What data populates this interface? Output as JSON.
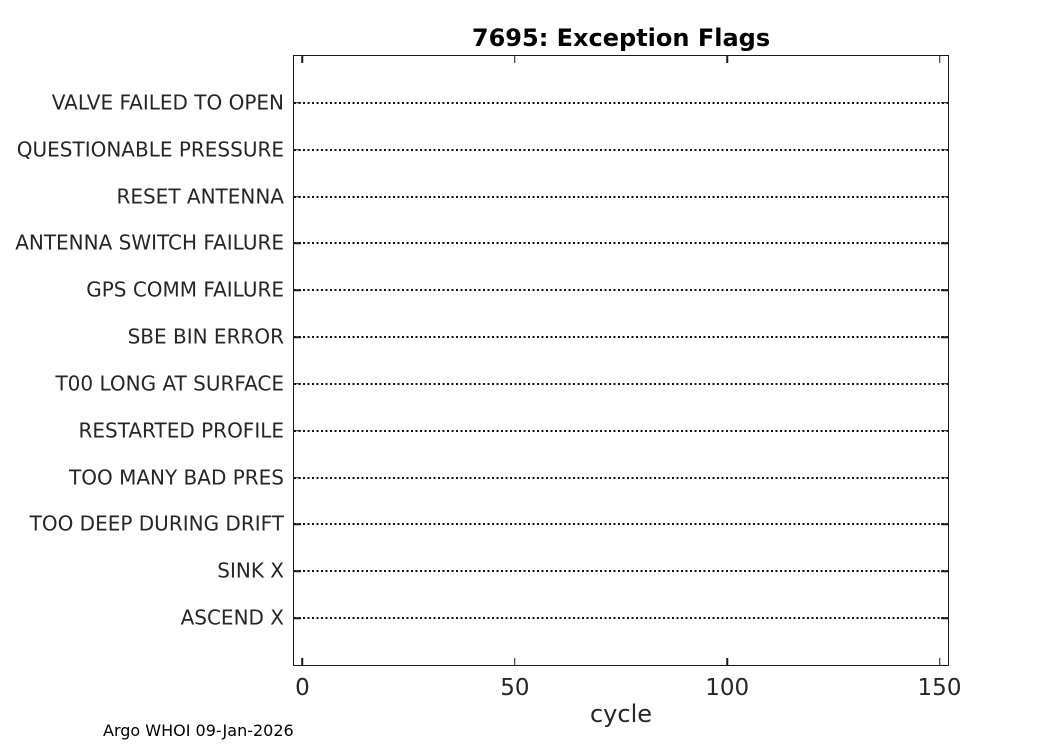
{
  "chart_data": {
    "type": "scatter",
    "title": "7695: Exception Flags",
    "xlabel": "cycle",
    "ylabel": "",
    "categories": [
      "VALVE FAILED TO OPEN",
      "QUESTIONABLE PRESSURE",
      "RESET ANTENNA",
      "ANTENNA SWITCH FAILURE",
      "GPS COMM FAILURE",
      "SBE BIN ERROR",
      "T00 LONG AT SURFACE",
      "RESTARTED PROFILE",
      "TOO MANY BAD PRES",
      "TOO DEEP DURING DRIFT",
      "SINK X",
      "ASCEND X"
    ],
    "series": [],
    "points": [],
    "x_ticks": [
      0,
      50,
      100,
      150
    ],
    "xlim": [
      -2,
      152
    ],
    "y_slots": 13,
    "grid": "horizontal dotted line across each category row",
    "legend": "none",
    "annotations": "no exception events plotted on any row"
  },
  "footer": {
    "text": "Argo WHOI 09-Jan-2026"
  },
  "colors": {
    "background": "#ffffff",
    "axis": "#1a1a1a",
    "tick_text": "#262626",
    "title_text": "#000000",
    "grid_dots": "#111111"
  }
}
